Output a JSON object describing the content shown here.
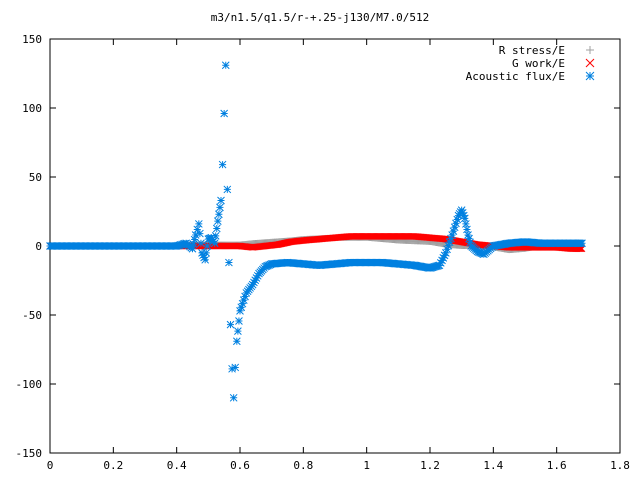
{
  "chart_data": {
    "type": "scatter",
    "title": "m3/n1.5/q1.5/r-+.25-j130/M7.0/512",
    "xlabel": "",
    "ylabel": "",
    "xlim": [
      0,
      1.8
    ],
    "ylim": [
      -150,
      150
    ],
    "x_ticks": [
      0,
      0.2,
      0.4,
      0.6,
      0.8,
      1,
      1.2,
      1.4,
      1.6,
      1.8
    ],
    "x_tick_labels": [
      "0",
      "0.2",
      "0.4",
      "0.6",
      "0.8",
      "1",
      "1.2",
      "1.4",
      "1.6",
      "1.8"
    ],
    "y_ticks": [
      -150,
      -100,
      -50,
      0,
      50,
      100,
      150
    ],
    "y_tick_labels": [
      "-150",
      "-100",
      "-50",
      "0",
      "50",
      "100",
      "150"
    ],
    "grid": false,
    "legend_position": "top-right",
    "series": [
      {
        "name": "R stress/E",
        "marker": "plus",
        "color": "#a0a0a0",
        "points": [
          [
            0.0,
            0
          ],
          [
            0.1,
            0
          ],
          [
            0.2,
            0
          ],
          [
            0.3,
            0
          ],
          [
            0.42,
            0.5
          ],
          [
            0.48,
            1
          ],
          [
            0.52,
            1
          ],
          [
            0.56,
            1
          ],
          [
            0.6,
            1
          ],
          [
            0.64,
            2
          ],
          [
            0.7,
            3
          ],
          [
            0.76,
            4
          ],
          [
            0.8,
            5
          ],
          [
            0.9,
            6
          ],
          [
            1.0,
            6
          ],
          [
            1.1,
            4
          ],
          [
            1.2,
            3
          ],
          [
            1.25,
            1
          ],
          [
            1.3,
            0
          ],
          [
            1.35,
            0
          ],
          [
            1.4,
            -1
          ],
          [
            1.45,
            -3
          ],
          [
            1.5,
            -2
          ],
          [
            1.55,
            0
          ],
          [
            1.6,
            1
          ],
          [
            1.68,
            1
          ]
        ]
      },
      {
        "name": "G work/E",
        "marker": "cross",
        "color": "#ff0000",
        "points": [
          [
            0.0,
            0
          ],
          [
            0.1,
            0
          ],
          [
            0.2,
            0
          ],
          [
            0.3,
            0
          ],
          [
            0.42,
            0
          ],
          [
            0.5,
            0
          ],
          [
            0.56,
            0
          ],
          [
            0.6,
            0
          ],
          [
            0.64,
            -1
          ],
          [
            0.68,
            0
          ],
          [
            0.72,
            1
          ],
          [
            0.76,
            3
          ],
          [
            0.8,
            4
          ],
          [
            0.85,
            5
          ],
          [
            0.9,
            6
          ],
          [
            0.95,
            7
          ],
          [
            1.0,
            7
          ],
          [
            1.05,
            7
          ],
          [
            1.1,
            7
          ],
          [
            1.15,
            7
          ],
          [
            1.2,
            6
          ],
          [
            1.25,
            5
          ],
          [
            1.3,
            3
          ],
          [
            1.35,
            1
          ],
          [
            1.4,
            0
          ],
          [
            1.45,
            -1
          ],
          [
            1.5,
            -1
          ],
          [
            1.55,
            -1
          ],
          [
            1.6,
            -1
          ],
          [
            1.65,
            -2
          ],
          [
            1.68,
            -2
          ]
        ]
      },
      {
        "name": "Acoustic flux/E",
        "marker": "star",
        "color": "#0080e0",
        "points": [
          [
            0.0,
            0
          ],
          [
            0.1,
            0
          ],
          [
            0.2,
            0
          ],
          [
            0.3,
            0
          ],
          [
            0.4,
            0
          ],
          [
            0.43,
            2
          ],
          [
            0.45,
            -2
          ],
          [
            0.46,
            8
          ],
          [
            0.47,
            16
          ],
          [
            0.48,
            -5
          ],
          [
            0.49,
            -10
          ],
          [
            0.5,
            5
          ],
          [
            0.51,
            6
          ],
          [
            0.52,
            2
          ],
          [
            0.53,
            18
          ],
          [
            0.54,
            33
          ],
          [
            0.545,
            59
          ],
          [
            0.55,
            96
          ],
          [
            0.555,
            131
          ],
          [
            0.56,
            41
          ],
          [
            0.565,
            -12
          ],
          [
            0.57,
            -57
          ],
          [
            0.575,
            -89
          ],
          [
            0.58,
            -110
          ],
          [
            0.585,
            -88
          ],
          [
            0.59,
            -69
          ],
          [
            0.6,
            -47
          ],
          [
            0.62,
            -34
          ],
          [
            0.64,
            -28
          ],
          [
            0.66,
            -20
          ],
          [
            0.68,
            -15
          ],
          [
            0.7,
            -13
          ],
          [
            0.75,
            -12
          ],
          [
            0.8,
            -13
          ],
          [
            0.85,
            -14
          ],
          [
            0.9,
            -13
          ],
          [
            0.95,
            -12
          ],
          [
            1.0,
            -12
          ],
          [
            1.05,
            -12
          ],
          [
            1.1,
            -13
          ],
          [
            1.15,
            -14
          ],
          [
            1.2,
            -16
          ],
          [
            1.23,
            -14
          ],
          [
            1.25,
            -5
          ],
          [
            1.27,
            8
          ],
          [
            1.29,
            22
          ],
          [
            1.3,
            26
          ],
          [
            1.31,
            20
          ],
          [
            1.32,
            8
          ],
          [
            1.33,
            0
          ],
          [
            1.35,
            -4
          ],
          [
            1.37,
            -6
          ],
          [
            1.4,
            0
          ],
          [
            1.45,
            2
          ],
          [
            1.5,
            3
          ],
          [
            1.55,
            2
          ],
          [
            1.6,
            2
          ],
          [
            1.65,
            2
          ],
          [
            1.68,
            2
          ]
        ]
      }
    ]
  }
}
